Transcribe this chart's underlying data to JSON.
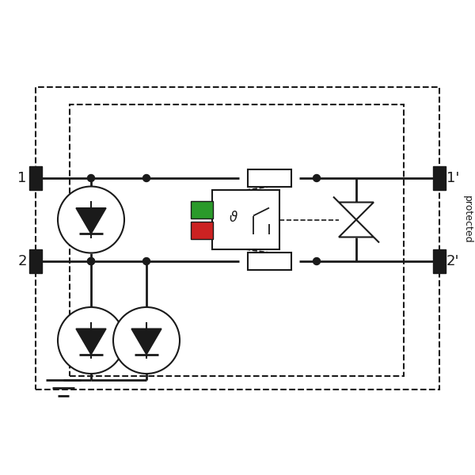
{
  "bg_color": "#ffffff",
  "line_color": "#1a1a1a",
  "green_color": "#2a9a2a",
  "red_color": "#cc2222",
  "figsize": [
    6.0,
    6.0
  ],
  "dpi": 100
}
